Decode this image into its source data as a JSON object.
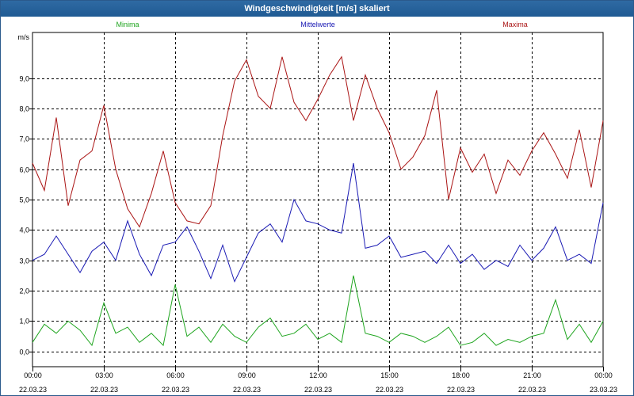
{
  "window": {
    "title": "Windgeschwindigkeit [m/s] skaliert"
  },
  "chart_data": {
    "type": "line",
    "ylabel": "m/s",
    "ylim": [
      -0.5,
      10.5
    ],
    "yticks": [
      0.0,
      1.0,
      2.0,
      3.0,
      4.0,
      5.0,
      6.0,
      7.0,
      8.0,
      9.0
    ],
    "ytick_labels": [
      "0,0",
      "1,0",
      "2,0",
      "3,0",
      "4,0",
      "5,0",
      "6,0",
      "7,0",
      "8,0",
      "9,0"
    ],
    "xlim": [
      0,
      24
    ],
    "xticks": [
      0,
      3,
      6,
      9,
      12,
      15,
      18,
      21,
      24
    ],
    "xtick_labels": [
      {
        "time": "00:00",
        "date": "22.03.23"
      },
      {
        "time": "03:00",
        "date": "22.03.23"
      },
      {
        "time": "06:00",
        "date": "22.03.23"
      },
      {
        "time": "09:00",
        "date": "22.03.23"
      },
      {
        "time": "12:00",
        "date": "22.03.23"
      },
      {
        "time": "15:00",
        "date": "22.03.23"
      },
      {
        "time": "18:00",
        "date": "22.03.23"
      },
      {
        "time": "21:00",
        "date": "22.03.23"
      },
      {
        "time": "00:00",
        "date": "23.03.23"
      }
    ],
    "grid": true,
    "legend_placement": "top",
    "series": [
      {
        "name": "Minima",
        "color": "#1fa51f",
        "x": [
          0,
          0.5,
          1,
          1.5,
          2,
          2.5,
          3,
          3.5,
          4,
          4.5,
          5,
          5.5,
          6,
          6.5,
          7,
          7.5,
          8,
          8.5,
          9,
          9.5,
          10,
          10.5,
          11,
          11.5,
          12,
          12.5,
          13,
          13.5,
          14,
          14.5,
          15,
          15.5,
          16,
          16.5,
          17,
          17.5,
          18,
          18.5,
          19,
          19.5,
          20,
          20.5,
          21,
          21.5,
          22,
          22.5,
          23,
          23.5,
          24
        ],
        "values": [
          0.3,
          0.9,
          0.6,
          1.0,
          0.7,
          0.2,
          1.6,
          0.6,
          0.8,
          0.3,
          0.6,
          0.2,
          2.2,
          0.5,
          0.8,
          0.3,
          0.9,
          0.5,
          0.3,
          0.8,
          1.1,
          0.5,
          0.6,
          0.9,
          0.4,
          0.6,
          0.3,
          2.5,
          0.6,
          0.5,
          0.3,
          0.6,
          0.5,
          0.3,
          0.5,
          0.8,
          0.2,
          0.3,
          0.6,
          0.2,
          0.4,
          0.3,
          0.5,
          0.6,
          1.7,
          0.4,
          0.9,
          0.3,
          1.0
        ]
      },
      {
        "name": "Mittelwerte",
        "color": "#1a1ab4",
        "x": [
          0,
          0.5,
          1,
          1.5,
          2,
          2.5,
          3,
          3.5,
          4,
          4.5,
          5,
          5.5,
          6,
          6.5,
          7,
          7.5,
          8,
          8.5,
          9,
          9.5,
          10,
          10.5,
          11,
          11.5,
          12,
          12.5,
          13,
          13.5,
          14,
          14.5,
          15,
          15.5,
          16,
          16.5,
          17,
          17.5,
          18,
          18.5,
          19,
          19.5,
          20,
          20.5,
          21,
          21.5,
          22,
          22.5,
          23,
          23.5,
          24
        ],
        "values": [
          3.0,
          3.2,
          3.8,
          3.2,
          2.6,
          3.3,
          3.6,
          3.0,
          4.3,
          3.2,
          2.5,
          3.5,
          3.6,
          4.1,
          3.3,
          2.4,
          3.5,
          2.3,
          3.1,
          3.9,
          4.2,
          3.6,
          5.0,
          4.3,
          4.2,
          4.0,
          3.9,
          6.2,
          3.4,
          3.5,
          3.8,
          3.1,
          3.2,
          3.3,
          2.9,
          3.5,
          2.9,
          3.2,
          2.7,
          3.0,
          2.8,
          3.5,
          3.0,
          3.4,
          4.1,
          3.0,
          3.2,
          2.9,
          4.9
        ]
      },
      {
        "name": "Maxima",
        "color": "#aa1414",
        "x": [
          0,
          0.5,
          1,
          1.5,
          2,
          2.5,
          3,
          3.5,
          4,
          4.5,
          5,
          5.5,
          6,
          6.5,
          7,
          7.5,
          8,
          8.5,
          9,
          9.5,
          10,
          10.5,
          11,
          11.5,
          12,
          12.5,
          13,
          13.5,
          14,
          14.5,
          15,
          15.5,
          16,
          16.5,
          17,
          17.5,
          18,
          18.5,
          19,
          19.5,
          20,
          20.5,
          21,
          21.5,
          22,
          22.5,
          23,
          23.5,
          24
        ],
        "values": [
          6.2,
          5.3,
          7.7,
          4.8,
          6.3,
          6.6,
          8.1,
          6.0,
          4.7,
          4.1,
          5.2,
          6.6,
          4.9,
          4.3,
          4.2,
          4.8,
          7.1,
          8.9,
          9.6,
          8.4,
          8.0,
          9.7,
          8.2,
          7.6,
          8.3,
          9.1,
          9.7,
          7.6,
          9.1,
          8.0,
          7.2,
          6.0,
          6.4,
          7.1,
          8.6,
          5.0,
          6.7,
          5.9,
          6.5,
          5.2,
          6.3,
          5.8,
          6.6,
          7.2,
          6.5,
          5.7,
          7.3,
          5.4,
          7.6
        ]
      }
    ]
  }
}
